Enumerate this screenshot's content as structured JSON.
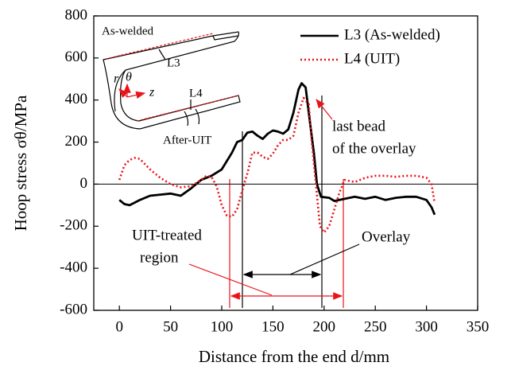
{
  "chart_data": {
    "type": "line",
    "x_label": "Distance from the end  d/mm",
    "y_label": "Hoop stress  σθ/MPa",
    "xlim": [
      -25,
      350
    ],
    "xticks": [
      0,
      50,
      100,
      150,
      200,
      250,
      300,
      350
    ],
    "ylim": [
      -600,
      800
    ],
    "yticks": [
      -600,
      -400,
      -200,
      0,
      200,
      400,
      600,
      800
    ],
    "legend": "upper right",
    "series": [
      {
        "name": "L3 (As-welded)",
        "color": "#000000",
        "style": "solid",
        "x": [
          0,
          5,
          10,
          20,
          30,
          40,
          50,
          60,
          70,
          80,
          90,
          100,
          110,
          115,
          120,
          125,
          130,
          135,
          140,
          145,
          150,
          155,
          160,
          165,
          170,
          175,
          178,
          182,
          186,
          190,
          193,
          197,
          205,
          210,
          220,
          230,
          240,
          250,
          260,
          270,
          280,
          290,
          300,
          305,
          308
        ],
        "values": [
          -75,
          -95,
          -100,
          -75,
          -55,
          -50,
          -45,
          -55,
          -20,
          20,
          40,
          70,
          150,
          200,
          210,
          245,
          250,
          230,
          215,
          240,
          255,
          250,
          240,
          260,
          340,
          450,
          480,
          460,
          300,
          150,
          0,
          -60,
          -65,
          -80,
          -70,
          -60,
          -70,
          -60,
          -75,
          -65,
          -60,
          -60,
          -75,
          -110,
          -145
        ]
      },
      {
        "name": "L4 (UIT)",
        "color": "#e8141a",
        "style": "dotted",
        "x": [
          0,
          5,
          10,
          15,
          20,
          30,
          40,
          50,
          60,
          70,
          80,
          85,
          90,
          95,
          100,
          105,
          110,
          115,
          120,
          125,
          130,
          135,
          140,
          145,
          150,
          155,
          160,
          165,
          170,
          175,
          180,
          185,
          188,
          192,
          196,
          200,
          205,
          210,
          215,
          220,
          230,
          240,
          250,
          260,
          270,
          280,
          290,
          300,
          305,
          308
        ],
        "values": [
          20,
          90,
          115,
          125,
          120,
          70,
          30,
          0,
          -15,
          -10,
          20,
          40,
          35,
          -10,
          -100,
          -150,
          -155,
          -120,
          -30,
          50,
          150,
          150,
          130,
          120,
          145,
          185,
          210,
          210,
          230,
          340,
          410,
          380,
          200,
          0,
          -200,
          -230,
          -200,
          -120,
          -40,
          20,
          10,
          30,
          40,
          40,
          35,
          40,
          40,
          30,
          0,
          -90
        ]
      }
    ],
    "annotations": [
      "last bead",
      "of the overlay",
      "UIT-treated",
      "region",
      "Overlay"
    ],
    "inset_labels": [
      "As-welded",
      "L3",
      "r",
      "θ",
      "z",
      "L4",
      "After-UIT"
    ]
  }
}
